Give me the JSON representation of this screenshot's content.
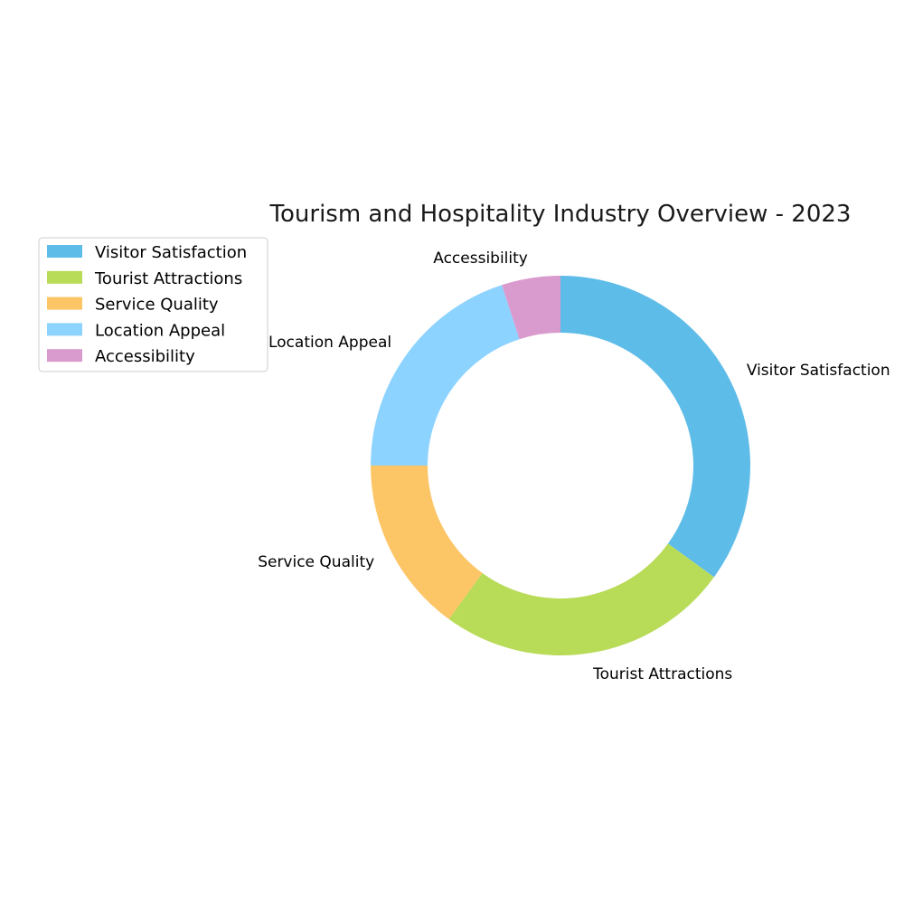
{
  "chart_data": {
    "type": "pie",
    "title": "Tourism and Hospitality Industry Overview - 2023",
    "donut": true,
    "start_angle_deg": 90,
    "direction": "clockwise",
    "legend_position": "top-left",
    "slices": [
      {
        "label": "Visitor Satisfaction",
        "value": 35,
        "color": "#5EBCE8"
      },
      {
        "label": "Tourist Attractions",
        "value": 25,
        "color": "#B8DB58"
      },
      {
        "label": "Service Quality",
        "value": 15,
        "color": "#FCC566"
      },
      {
        "label": "Location Appeal",
        "value": 20,
        "color": "#8DD3FF"
      },
      {
        "label": "Accessibility",
        "value": 5,
        "color": "#D99BCE"
      }
    ]
  }
}
